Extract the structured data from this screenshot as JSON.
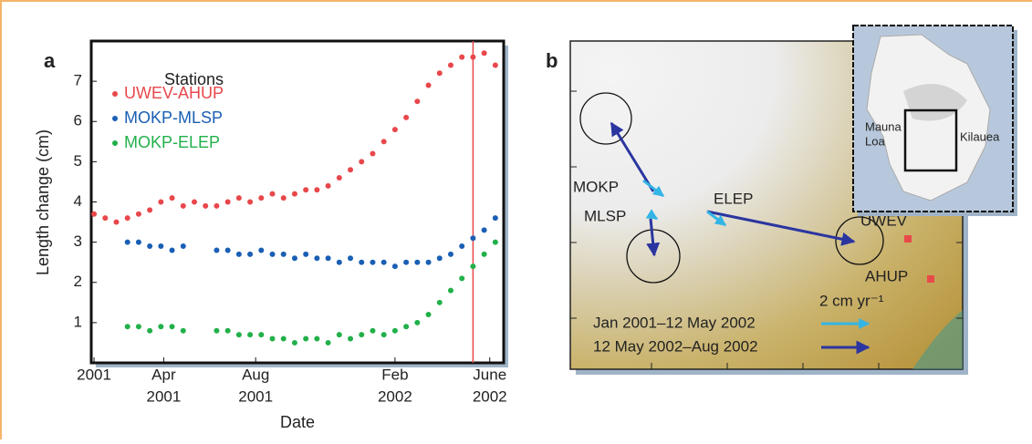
{
  "chart_data": {
    "type": "scatter",
    "panel_label": "a",
    "x_label": "Date",
    "y_label": "Length change (cm)",
    "legend_title": "Stations",
    "x": [
      2001.0,
      2001.04,
      2001.08,
      2001.12,
      2001.16,
      2001.2,
      2001.24,
      2001.28,
      2001.32,
      2001.36,
      2001.4,
      2001.44,
      2001.48,
      2001.52,
      2001.56,
      2001.6,
      2001.64,
      2001.68,
      2001.72,
      2001.76,
      2001.8,
      2001.84,
      2001.88,
      2001.92,
      2001.96,
      2002.0,
      2002.04,
      2002.08,
      2002.12,
      2002.16,
      2002.2,
      2002.24,
      2002.28,
      2002.32,
      2002.36,
      2002.4,
      2002.44
    ],
    "series": [
      {
        "name": "UWEV-AHUP",
        "color": "#e8474b",
        "values": [
          3.7,
          3.6,
          3.5,
          3.6,
          3.7,
          3.8,
          4.0,
          4.1,
          3.9,
          4.0,
          3.9,
          3.9,
          4.0,
          4.1,
          4.0,
          4.1,
          4.2,
          4.1,
          4.2,
          4.3,
          4.3,
          4.4,
          4.6,
          4.8,
          5.0,
          5.2,
          5.5,
          5.8,
          6.1,
          6.5,
          6.9,
          7.2,
          7.4,
          7.6,
          7.6,
          7.7,
          7.4
        ]
      },
      {
        "name": "MOKP-MLSP",
        "color": "#1a5fb4",
        "values": [
          null,
          null,
          null,
          3.0,
          3.0,
          2.9,
          2.9,
          2.8,
          2.9,
          null,
          null,
          2.8,
          2.8,
          2.7,
          2.7,
          2.8,
          2.7,
          2.7,
          2.6,
          2.7,
          2.6,
          2.6,
          2.5,
          2.6,
          2.5,
          2.5,
          2.5,
          2.4,
          2.5,
          2.5,
          2.5,
          2.6,
          2.7,
          2.9,
          3.1,
          3.3,
          3.6
        ]
      },
      {
        "name": "MOKP-ELEP",
        "color": "#22b04a",
        "values": [
          null,
          null,
          null,
          0.9,
          0.9,
          0.8,
          0.9,
          0.9,
          0.8,
          null,
          null,
          0.8,
          0.8,
          0.7,
          0.7,
          0.7,
          0.6,
          0.6,
          0.5,
          0.6,
          0.6,
          0.5,
          0.7,
          0.6,
          0.7,
          0.8,
          0.7,
          0.8,
          0.9,
          1.0,
          1.2,
          1.5,
          1.8,
          2.1,
          2.4,
          2.7,
          3.0
        ]
      }
    ],
    "xlim": [
      2000.99,
      2002.47
    ],
    "ylim": [
      0,
      8
    ],
    "xticks": [
      2001,
      {
        "value": 2001.25,
        "label": [
          "Apr",
          "2001"
        ]
      },
      {
        "value": 2001.58,
        "label": [
          "Aug",
          "2001"
        ]
      },
      {
        "value": 2002.08,
        "label": [
          "Feb",
          "2002"
        ]
      },
      {
        "value": 2002.42,
        "label": [
          "June",
          "2002"
        ]
      }
    ],
    "yticks": [
      1,
      2,
      3,
      4,
      5,
      6,
      7
    ],
    "vline": 2002.36,
    "vline_color": "#e8474b"
  },
  "map": {
    "panel_label": "b",
    "stations": [
      "MOKP",
      "MLSP",
      "ELEP",
      "UWEV",
      "AHUP"
    ],
    "scale_label": "2 cm yr⁻¹",
    "arrow_legend": [
      "Jan 2001–12 May 2002",
      "12 May 2002–Aug 2002"
    ],
    "inset_labels": [
      "Mauna",
      "Loa",
      "Kilauea"
    ]
  }
}
